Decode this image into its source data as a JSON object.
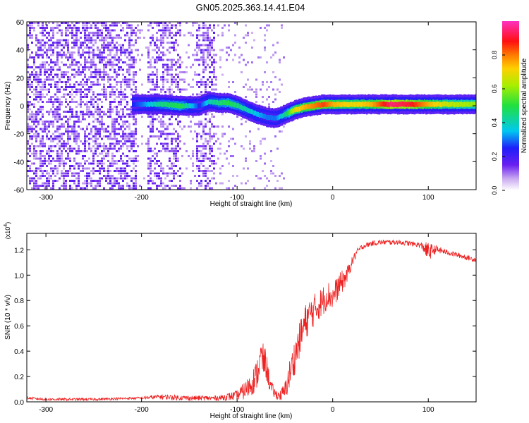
{
  "figure_title": "GN05.2025.363.14.41.E04",
  "colors": {
    "snr_line": "#ee2222",
    "axis": "#000000",
    "background": "#ffffff"
  },
  "chart_data": [
    {
      "type": "heatmap",
      "title": "GN05.2025.363.14.41.E04",
      "xlabel": "Height of straight line (km)",
      "ylabel": "Frequency (Hz)",
      "xlim": [
        -320,
        150
      ],
      "ylim": [
        -60,
        60
      ],
      "xticks": [
        -300,
        -200,
        -100,
        0,
        100
      ],
      "yticks": [
        -60,
        -40,
        -20,
        0,
        20,
        40,
        60
      ],
      "colorbar": {
        "label": "Normalized spectral amplitude",
        "range": [
          0,
          1
        ],
        "ticks": [
          "0.0",
          "0.2",
          "0.4",
          "0.6",
          "0.8"
        ]
      },
      "dominant_ridge": {
        "x": [
          -210,
          -200,
          -180,
          -160,
          -140,
          -130,
          -120,
          -110,
          -100,
          -90,
          -80,
          -70,
          -60,
          -50,
          -40,
          -30,
          -20,
          -10,
          0,
          20,
          40,
          60,
          80,
          100,
          120,
          150
        ],
        "y": [
          1,
          1,
          1,
          0,
          0,
          3,
          2,
          2,
          0,
          -3,
          -6,
          -8,
          -9,
          -6,
          -3,
          -1,
          0,
          1,
          1,
          1,
          1,
          1,
          1,
          1,
          1,
          1
        ],
        "amplitude": [
          0.25,
          0.3,
          0.45,
          0.5,
          0.25,
          0.4,
          0.45,
          0.5,
          0.45,
          0.4,
          0.35,
          0.3,
          0.3,
          0.45,
          0.7,
          0.75,
          0.8,
          0.85,
          0.75,
          0.7,
          0.75,
          0.95,
          0.9,
          0.75,
          0.65,
          0.6
        ]
      }
    },
    {
      "type": "line",
      "xlabel": "Height of straight line (km)",
      "ylabel": "SNR (10 * v/v)",
      "scale_label": "(x10",
      "scale_exponent": "4",
      "xlim": [
        -320,
        150
      ],
      "ylim": [
        0,
        1.33
      ],
      "xticks": [
        -300,
        -200,
        -100,
        0,
        100
      ],
      "yticks": [
        "0.0",
        "0.2",
        "0.4",
        "0.6",
        "0.8",
        "1.0",
        "1.2"
      ],
      "series": [
        {
          "name": "SNR",
          "x": [
            -320,
            -300,
            -250,
            -200,
            -180,
            -150,
            -120,
            -100,
            -90,
            -80,
            -75,
            -70,
            -65,
            -60,
            -55,
            -50,
            -45,
            -40,
            -35,
            -30,
            -25,
            -20,
            -15,
            -10,
            -5,
            0,
            5,
            10,
            15,
            20,
            25,
            30,
            40,
            50,
            60,
            70,
            80,
            90,
            95,
            100,
            105,
            110,
            120,
            130,
            140,
            150
          ],
          "y": [
            0.03,
            0.02,
            0.02,
            0.03,
            0.04,
            0.03,
            0.03,
            0.05,
            0.1,
            0.2,
            0.35,
            0.3,
            0.12,
            0.06,
            0.05,
            0.08,
            0.22,
            0.35,
            0.48,
            0.6,
            0.68,
            0.72,
            0.76,
            0.8,
            0.85,
            0.82,
            0.9,
            0.95,
            1.0,
            1.1,
            1.18,
            1.22,
            1.25,
            1.26,
            1.26,
            1.26,
            1.25,
            1.24,
            1.22,
            1.18,
            1.2,
            1.2,
            1.18,
            1.16,
            1.14,
            1.12
          ],
          "noise": [
            0.01,
            0.01,
            0.01,
            0.01,
            0.02,
            0.02,
            0.02,
            0.04,
            0.08,
            0.12,
            0.14,
            0.12,
            0.06,
            0.04,
            0.04,
            0.08,
            0.12,
            0.14,
            0.14,
            0.15,
            0.14,
            0.13,
            0.12,
            0.12,
            0.11,
            0.1,
            0.1,
            0.09,
            0.07,
            0.04,
            0.03,
            0.02,
            0.02,
            0.02,
            0.02,
            0.02,
            0.02,
            0.02,
            0.04,
            0.08,
            0.04,
            0.03,
            0.02,
            0.02,
            0.02,
            0.02
          ]
        }
      ]
    }
  ]
}
